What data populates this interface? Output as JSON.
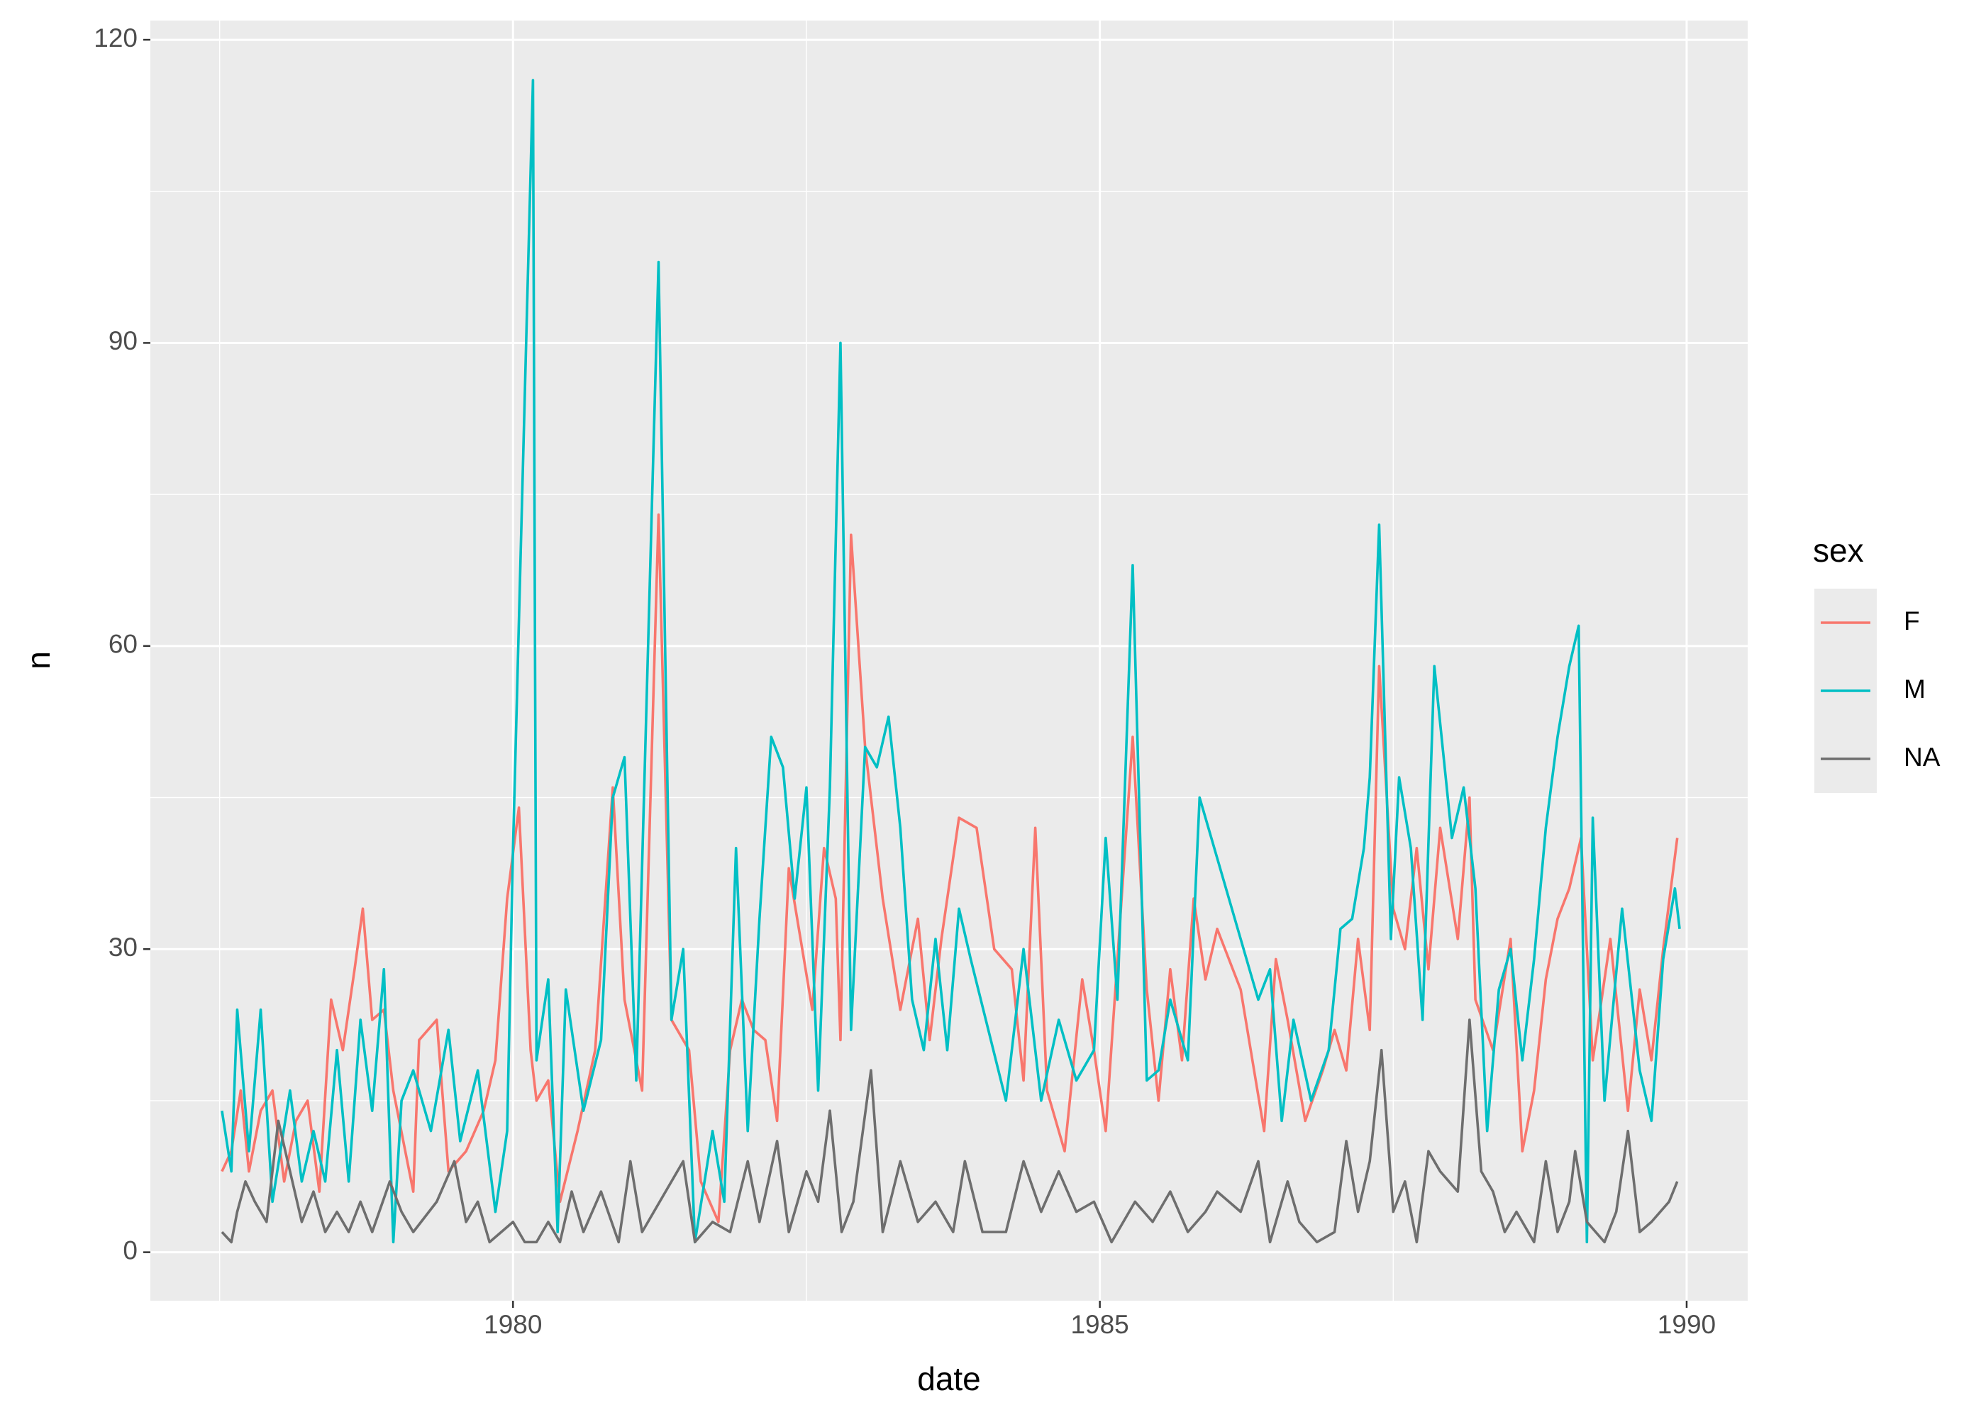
{
  "chart_data": {
    "type": "line",
    "x_label": "date",
    "y_label": "n",
    "legend_title": "sex",
    "legend_position": "right",
    "grid": true,
    "xlim": [
      1976.91,
      1990.52
    ],
    "ylim": [
      -4.8,
      121.9
    ],
    "xticks": [
      1980,
      1985,
      1990
    ],
    "yticks": [
      0,
      30,
      60,
      90,
      120
    ],
    "xminor": [
      1977.5,
      1982.5,
      1987.5
    ],
    "yminor": [
      15,
      45,
      75,
      105
    ],
    "series": [
      {
        "name": "F",
        "color": "#F8766D",
        "x": [
          1977.52,
          1977.6,
          1977.68,
          1977.75,
          1977.85,
          1977.95,
          1978.05,
          1978.15,
          1978.25,
          1978.35,
          1978.45,
          1978.55,
          1978.65,
          1978.72,
          1978.8,
          1978.9,
          1978.98,
          1979.15,
          1979.2,
          1979.35,
          1979.45,
          1979.6,
          1979.75,
          1979.85,
          1979.95,
          1980.05,
          1980.15,
          1980.2,
          1980.3,
          1980.4,
          1980.55,
          1980.7,
          1980.85,
          1980.95,
          1981.1,
          1981.24,
          1981.35,
          1981.5,
          1981.6,
          1981.75,
          1981.85,
          1981.95,
          1982.05,
          1982.15,
          1982.25,
          1982.35,
          1982.45,
          1982.55,
          1982.65,
          1982.75,
          1982.79,
          1982.88,
          1983.0,
          1983.15,
          1983.3,
          1983.45,
          1983.55,
          1983.65,
          1983.8,
          1983.95,
          1984.1,
          1984.25,
          1984.35,
          1984.45,
          1984.55,
          1984.7,
          1984.85,
          1984.95,
          1985.05,
          1985.15,
          1985.28,
          1985.4,
          1985.5,
          1985.6,
          1985.7,
          1985.8,
          1985.9,
          1986.0,
          1986.2,
          1986.4,
          1986.5,
          1986.6,
          1986.75,
          1986.9,
          1987.0,
          1987.1,
          1987.2,
          1987.3,
          1987.38,
          1987.5,
          1987.6,
          1987.7,
          1987.8,
          1987.9,
          1988.05,
          1988.15,
          1988.2,
          1988.35,
          1988.5,
          1988.6,
          1988.7,
          1988.8,
          1988.9,
          1989.0,
          1989.1,
          1989.2,
          1989.35,
          1989.5,
          1989.6,
          1989.7,
          1989.8,
          1989.92
        ],
        "values": [
          8,
          10,
          16,
          8,
          14,
          16,
          7,
          13,
          15,
          6,
          25,
          20,
          28,
          34,
          23,
          24,
          16,
          6,
          21,
          23,
          8,
          10,
          14,
          19,
          35,
          44,
          20,
          15,
          17,
          5,
          12,
          20,
          46,
          25,
          16,
          73,
          23,
          20,
          7,
          3,
          20,
          25,
          22,
          21,
          13,
          38,
          31,
          24,
          40,
          35,
          21,
          71,
          50,
          35,
          24,
          33,
          21,
          31,
          43,
          42,
          30,
          28,
          17,
          42,
          16,
          10,
          27,
          20,
          12,
          29,
          51,
          26,
          15,
          28,
          19,
          35,
          27,
          32,
          26,
          12,
          29,
          23,
          13,
          18,
          22,
          18,
          31,
          22,
          58,
          34,
          30,
          40,
          28,
          42,
          31,
          45,
          25,
          20,
          31,
          10,
          16,
          27,
          33,
          36,
          41,
          19,
          31,
          14,
          26,
          19,
          30,
          41
        ]
      },
      {
        "name": "M",
        "color": "#00BFC4",
        "x": [
          1977.52,
          1977.6,
          1977.65,
          1977.75,
          1977.85,
          1977.95,
          1978.1,
          1978.2,
          1978.3,
          1978.4,
          1978.5,
          1978.6,
          1978.7,
          1978.8,
          1978.9,
          1978.98,
          1979.05,
          1979.15,
          1979.3,
          1979.45,
          1979.55,
          1979.7,
          1979.85,
          1979.95,
          1980.0,
          1980.17,
          1980.2,
          1980.3,
          1980.38,
          1980.45,
          1980.6,
          1980.75,
          1980.85,
          1980.95,
          1981.05,
          1981.24,
          1981.35,
          1981.45,
          1981.55,
          1981.7,
          1981.8,
          1981.9,
          1982.0,
          1982.1,
          1982.2,
          1982.3,
          1982.4,
          1982.5,
          1982.6,
          1982.7,
          1982.79,
          1982.88,
          1983.0,
          1983.1,
          1983.2,
          1983.3,
          1983.4,
          1983.5,
          1983.6,
          1983.7,
          1983.8,
          1983.9,
          1984.05,
          1984.2,
          1984.35,
          1984.5,
          1984.65,
          1984.8,
          1984.95,
          1985.05,
          1985.15,
          1985.28,
          1985.4,
          1985.5,
          1985.6,
          1985.75,
          1985.85,
          1985.95,
          1986.2,
          1986.35,
          1986.45,
          1986.55,
          1986.65,
          1986.8,
          1986.95,
          1987.05,
          1987.15,
          1987.25,
          1987.3,
          1987.38,
          1987.48,
          1987.55,
          1987.65,
          1987.75,
          1987.85,
          1988.0,
          1988.1,
          1988.2,
          1988.3,
          1988.4,
          1988.5,
          1988.6,
          1988.7,
          1988.8,
          1988.9,
          1989.0,
          1989.08,
          1989.15,
          1989.2,
          1989.3,
          1989.45,
          1989.6,
          1989.7,
          1989.8,
          1989.9,
          1989.94
        ],
        "values": [
          14,
          8,
          24,
          10,
          24,
          5,
          16,
          7,
          12,
          7,
          20,
          7,
          23,
          14,
          28,
          1,
          15,
          18,
          12,
          22,
          11,
          18,
          4,
          12,
          40,
          116,
          19,
          27,
          2,
          26,
          14,
          21,
          45,
          49,
          17,
          98,
          23,
          30,
          1,
          12,
          5,
          40,
          12,
          33,
          51,
          48,
          35,
          46,
          16,
          46,
          90,
          22,
          50,
          48,
          53,
          42,
          25,
          20,
          31,
          20,
          34,
          29,
          22,
          15,
          30,
          15,
          23,
          17,
          20,
          41,
          25,
          68,
          17,
          18,
          25,
          19,
          45,
          41,
          31,
          25,
          28,
          13,
          23,
          15,
          20,
          32,
          33,
          40,
          47,
          72,
          31,
          47,
          40,
          23,
          58,
          41,
          46,
          36,
          12,
          26,
          30,
          19,
          29,
          42,
          51,
          58,
          62,
          1,
          43,
          15,
          34,
          18,
          13,
          29,
          36,
          32
        ]
      },
      {
        "name": "NA",
        "color": "#6E6E6E",
        "x": [
          1977.52,
          1977.6,
          1977.65,
          1977.72,
          1977.8,
          1977.9,
          1978.0,
          1978.1,
          1978.2,
          1978.3,
          1978.4,
          1978.5,
          1978.6,
          1978.7,
          1978.8,
          1978.95,
          1979.05,
          1979.15,
          1979.35,
          1979.5,
          1979.6,
          1979.7,
          1979.8,
          1980.0,
          1980.1,
          1980.2,
          1980.3,
          1980.4,
          1980.5,
          1980.6,
          1980.75,
          1980.9,
          1981.0,
          1981.1,
          1981.3,
          1981.45,
          1981.55,
          1981.7,
          1981.85,
          1982.0,
          1982.1,
          1982.25,
          1982.35,
          1982.5,
          1982.6,
          1982.7,
          1982.8,
          1982.9,
          1983.05,
          1983.15,
          1983.3,
          1983.45,
          1983.6,
          1983.75,
          1983.85,
          1984.0,
          1984.2,
          1984.35,
          1984.5,
          1984.65,
          1984.8,
          1984.95,
          1985.1,
          1985.3,
          1985.45,
          1985.6,
          1985.75,
          1985.9,
          1986.0,
          1986.2,
          1986.35,
          1986.45,
          1986.6,
          1986.7,
          1986.85,
          1987.0,
          1987.1,
          1987.2,
          1987.3,
          1987.4,
          1987.5,
          1987.6,
          1987.7,
          1987.8,
          1987.9,
          1988.05,
          1988.15,
          1988.25,
          1988.35,
          1988.45,
          1988.55,
          1988.7,
          1988.8,
          1988.9,
          1989.0,
          1989.05,
          1989.15,
          1989.3,
          1989.4,
          1989.5,
          1989.6,
          1989.7,
          1989.85,
          1989.92
        ],
        "values": [
          2,
          1,
          4,
          7,
          5,
          3,
          13,
          8,
          3,
          6,
          2,
          4,
          2,
          5,
          2,
          7,
          4,
          2,
          5,
          9,
          3,
          5,
          1,
          3,
          1,
          1,
          3,
          1,
          6,
          2,
          6,
          1,
          9,
          2,
          6,
          9,
          1,
          3,
          2,
          9,
          3,
          11,
          2,
          8,
          5,
          14,
          2,
          5,
          18,
          2,
          9,
          3,
          5,
          2,
          9,
          2,
          2,
          9,
          4,
          8,
          4,
          5,
          1,
          5,
          3,
          6,
          2,
          4,
          6,
          4,
          9,
          1,
          7,
          3,
          1,
          2,
          11,
          4,
          9,
          20,
          4,
          7,
          1,
          10,
          8,
          6,
          23,
          8,
          6,
          2,
          4,
          1,
          9,
          2,
          5,
          10,
          3,
          1,
          4,
          12,
          2,
          3,
          5,
          7
        ]
      }
    ]
  }
}
